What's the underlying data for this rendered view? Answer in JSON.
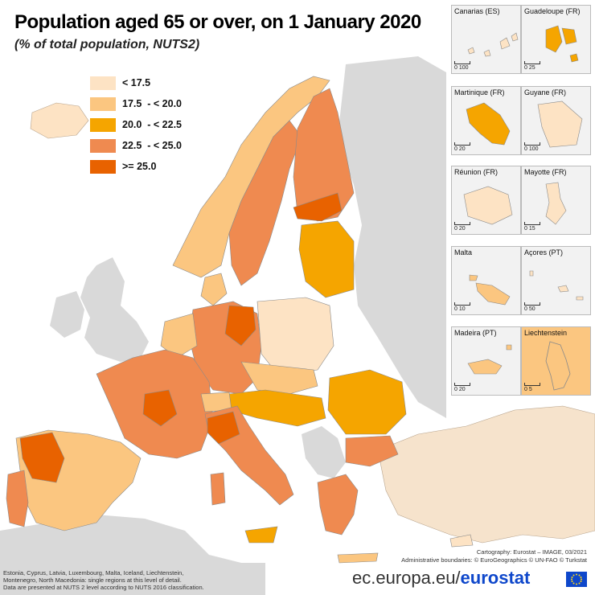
{
  "title": "Population aged 65 or over, on 1 January 2020",
  "subtitle": "(% of total population, NUTS2)",
  "legend": [
    {
      "label": "< 17.5",
      "color": "#fde3c4"
    },
    {
      "label": "17.5  - < 20.0",
      "color": "#fbc680"
    },
    {
      "label": "20.0  - < 22.5",
      "color": "#f5a500"
    },
    {
      "label": "22.5  - < 25.0",
      "color": "#ef8a50"
    },
    {
      "label": ">= 25.0",
      "color": "#e86200"
    }
  ],
  "colors": {
    "sea": "#ffffff",
    "non_eu": "#d9d9d9",
    "border": "#8a8a8a"
  },
  "insets": [
    {
      "name": "Canarias (ES)",
      "scale": "0  100"
    },
    {
      "name": "Guadeloupe (FR)",
      "scale": "0  25"
    },
    {
      "name": "Martinique (FR)",
      "scale": "0  20"
    },
    {
      "name": "Guyane (FR)",
      "scale": "0  100"
    },
    {
      "name": "Réunion (FR)",
      "scale": "0  20"
    },
    {
      "name": "Mayotte (FR)",
      "scale": "0  15"
    },
    {
      "name": "Malta",
      "scale": "0  10"
    },
    {
      "name": "Açores (PT)",
      "scale": "0  50"
    },
    {
      "name": "Madeira (PT)",
      "scale": "0  20"
    },
    {
      "name": "Liechtenstein",
      "scale": "0  5"
    }
  ],
  "credits": {
    "cartography": "Cartography: Eurostat – IMAGE, 03/2021",
    "boundaries": "Administrative boundaries: © EuroGeographics © UN-FAO © Turkstat"
  },
  "footnote": {
    "line1": "Estonia, Cyprus, Latvia, Luxembourg, Malta, Iceland, Liechtenstein,",
    "line2": "Montenegro, North Macedonia: single regions at this level of detail.",
    "line3": "Data are presented at NUTS 2 level according to NUTS 2016 classification."
  },
  "brand": {
    "prefix": "ec.europa.eu/",
    "name": "eurostat"
  }
}
